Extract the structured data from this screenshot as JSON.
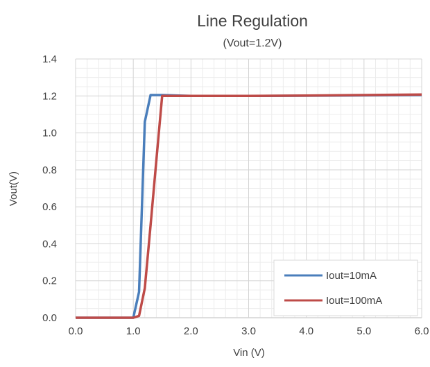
{
  "chart_data": {
    "type": "line",
    "title": "Line Regulation",
    "subtitle": "(Vout=1.2V)",
    "xlabel": "Vin (V)",
    "ylabel": "Vout(V)",
    "xlim": [
      0,
      6
    ],
    "ylim": [
      0,
      1.4
    ],
    "x_ticks": [
      "0.0",
      "1.0",
      "2.0",
      "3.0",
      "4.0",
      "5.0",
      "6.0"
    ],
    "y_ticks": [
      "0.0",
      "0.2",
      "0.4",
      "0.6",
      "0.8",
      "1.0",
      "1.2",
      "1.4"
    ],
    "grid": true,
    "legend_position": "bottom-right",
    "series": [
      {
        "name": "Iout=10mA",
        "color": "#4a7ebb",
        "x": [
          0,
          1.0,
          1.1,
          1.2,
          1.3,
          1.5,
          2.0,
          3.0,
          4.0,
          5.0,
          6.0
        ],
        "y": [
          0,
          0,
          0.14,
          1.06,
          1.205,
          1.205,
          1.2,
          1.2,
          1.201,
          1.203,
          1.205
        ]
      },
      {
        "name": "Iout=100mA",
        "color": "#be4b48",
        "x": [
          0,
          1.0,
          1.1,
          1.2,
          1.3,
          1.4,
          1.5,
          2.0,
          3.0,
          4.0,
          5.0,
          6.0
        ],
        "y": [
          0,
          0,
          0.01,
          0.16,
          0.5,
          0.85,
          1.2,
          1.2,
          1.2,
          1.202,
          1.205,
          1.208
        ]
      }
    ]
  }
}
